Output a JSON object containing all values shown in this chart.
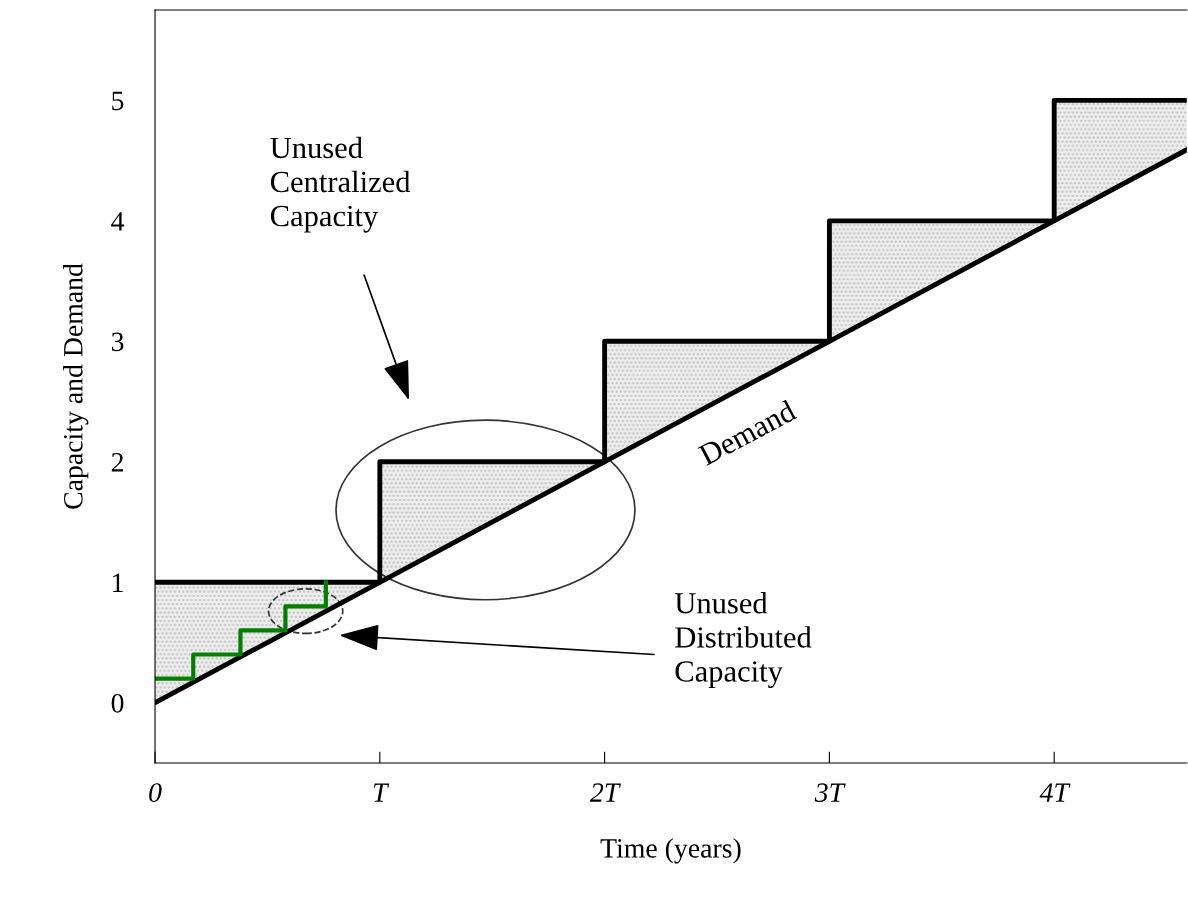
{
  "chart_data": {
    "type": "step",
    "xlabel": "Time (years)",
    "ylabel": "Capacity and Demand",
    "xlim": [
      0,
      4.59
    ],
    "ylim": [
      -0.5,
      5.75
    ],
    "xticks": [
      {
        "value": 0,
        "label": "0"
      },
      {
        "value": 1,
        "label": "T"
      },
      {
        "value": 2,
        "label": "2T"
      },
      {
        "value": 3,
        "label": "3T"
      },
      {
        "value": 4,
        "label": "4T"
      }
    ],
    "yticks": [
      0,
      1,
      2,
      3,
      4,
      5
    ],
    "grid": false,
    "legend": false,
    "series": [
      {
        "color": "#000000",
        "x": [
          0,
          1,
          2,
          3,
          4,
          4.59
        ],
        "values": [
          1,
          2,
          3,
          4,
          5,
          5
        ],
        "lower": [
          0,
          1,
          2,
          3,
          4,
          4.59
        ],
        "upper": [
          1,
          2,
          3,
          4,
          5,
          5
        ]
      },
      {
        "type": "line",
        "color": "#000000",
        "x": [
          0,
          4.59
        ],
        "values": [
          0,
          4.59
        ]
      },
      {
        "color": "#008000",
        "x": [
          0,
          0.17,
          0.38,
          0.58,
          0.76
        ],
        "values": [
          0.2,
          0.4,
          0.6,
          0.8,
          1.0
        ]
      }
    ],
    "annotations": [
      "Unused\nCentralized\nCapacity",
      "Unused\nDistributed\nCapacity",
      "Demand"
    ]
  }
}
